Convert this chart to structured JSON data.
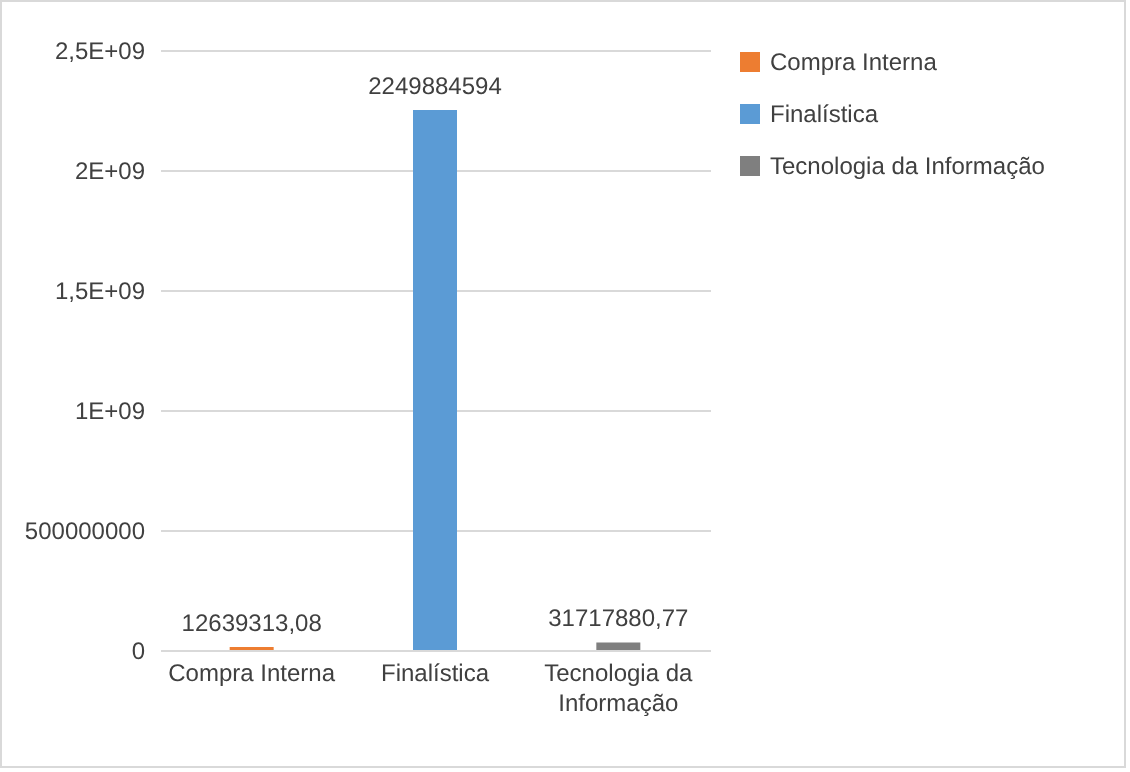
{
  "chart_data": {
    "type": "bar",
    "categories": [
      "Compra Interna",
      "Finalística",
      "Tecnologia da Informação"
    ],
    "series": [
      {
        "name": "Compra Interna",
        "color": "#ed7d31",
        "values": [
          12639313.08,
          null,
          null
        ],
        "value_labels": [
          "12639313,08",
          null,
          null
        ]
      },
      {
        "name": "Finalística",
        "color": "#5b9bd5",
        "values": [
          null,
          2249884594,
          null
        ],
        "value_labels": [
          null,
          "2249884594",
          null
        ]
      },
      {
        "name": "Tecnologia da Informação",
        "color": "#7f7f7f",
        "values": [
          null,
          null,
          31717880.77
        ],
        "value_labels": [
          null,
          null,
          "31717880,77"
        ]
      }
    ],
    "ylim": [
      0,
      2500000000
    ],
    "yticks": [
      0,
      500000000,
      {
        "value": 1000000000,
        "label": "1E+09"
      },
      {
        "value": 1500000000,
        "label": "1,5E+09"
      },
      {
        "value": 2000000000,
        "label": "2E+09"
      },
      {
        "value": 2500000000,
        "label": "2,5E+09"
      }
    ],
    "grid": "y",
    "legend": "right"
  }
}
